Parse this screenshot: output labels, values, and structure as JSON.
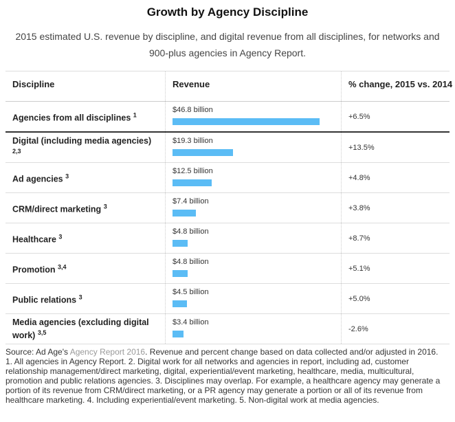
{
  "chart_data": {
    "type": "bar",
    "title": "Growth by Agency Discipline",
    "subtitle": "2015 estimated U.S. revenue by discipline, and digital revenue from all disciplines, for networks and 900-plus agencies in Agency Report.",
    "columns": [
      "Discipline",
      "Revenue",
      "% change, 2015 vs. 2014"
    ],
    "categories": [
      "Agencies from all disciplines",
      "Digital (including media agencies)",
      "Ad agencies",
      "CRM/direct marketing",
      "Healthcare",
      "Promotion",
      "Public relations",
      "Media agencies (excluding digital work)"
    ],
    "notes": [
      "1",
      "2,3",
      "3",
      "3",
      "3",
      "3,4",
      "3",
      "3,5"
    ],
    "values": [
      46.8,
      19.3,
      12.5,
      7.4,
      4.8,
      4.8,
      4.5,
      3.4
    ],
    "value_labels": [
      "$46.8 billion",
      "$19.3 billion",
      "$12.5 billion",
      "$7.4 billion",
      "$4.8 billion",
      "$4.8 billion",
      "$4.5 billion",
      "$3.4 billion"
    ],
    "change": [
      "+6.5%",
      "+13.5%",
      "+4.8%",
      "+3.8%",
      "+8.7%",
      "+5.1%",
      "+5.0%",
      "-2.6%"
    ],
    "color": "#5bbcf5",
    "source_prefix": "Source: Ad Age's",
    "source_link": "Agency Report 2016",
    "source_text": ". Revenue and percent change based on data collected and/or adjusted in 2016. 1. All agencies in Agency Report. 2. Digital work for all networks and agencies in report, including ad, customer relationship management/direct marketing, digital, experiential/event marketing, healthcare, media, multicultural, promotion and public relations agencies. 3. Disciplines may overlap. For example, a healthcare agency may generate a portion of its revenue from CRM/direct marketing, or a PR agency may generate a portion or all of its revenue from healthcare marketing. 4. Including experiential/event marketing. 5. Non-digital work at media agencies."
  }
}
